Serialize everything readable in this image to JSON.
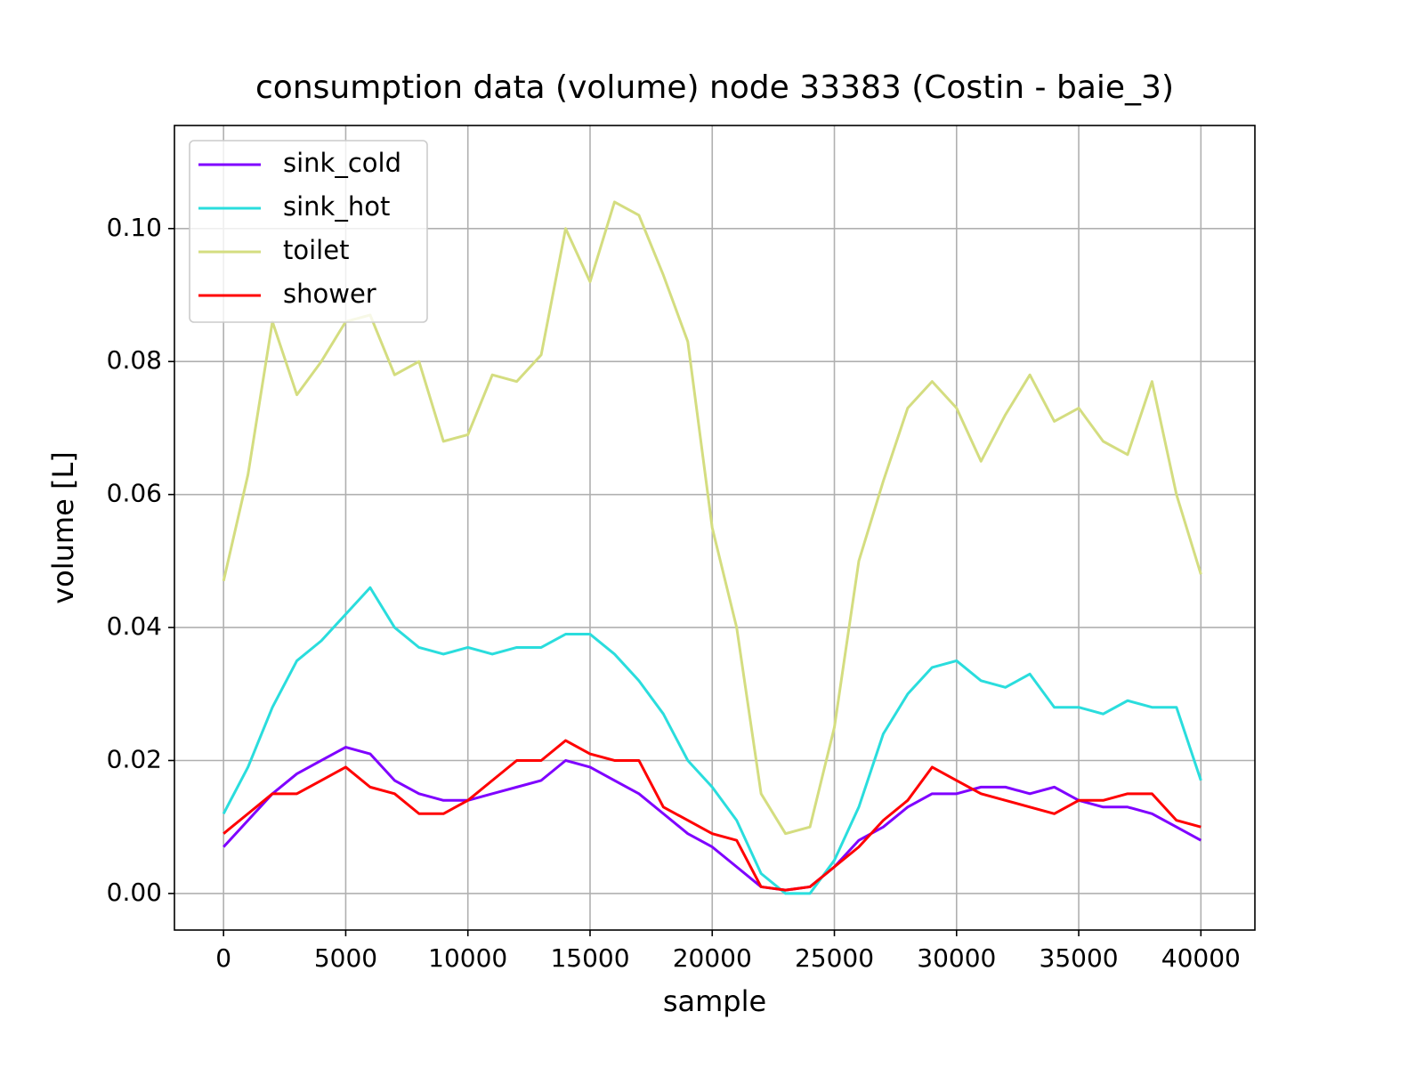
{
  "chart_data": {
    "type": "line",
    "title": "consumption data (volume) node 33383 (Costin - baie_3)",
    "xlabel": "sample",
    "ylabel": "volume [L]",
    "x": [
      0,
      1000,
      2000,
      3000,
      4000,
      5000,
      6000,
      7000,
      8000,
      9000,
      10000,
      11000,
      12000,
      13000,
      14000,
      15000,
      16000,
      17000,
      18000,
      19000,
      20000,
      21000,
      22000,
      23000,
      24000,
      25000,
      26000,
      27000,
      28000,
      29000,
      30000,
      31000,
      32000,
      33000,
      34000,
      35000,
      36000,
      37000,
      38000,
      39000,
      40000
    ],
    "series": [
      {
        "name": "sink_cold",
        "color": "#7f00ff",
        "values": [
          0.007,
          0.011,
          0.015,
          0.018,
          0.02,
          0.022,
          0.021,
          0.017,
          0.015,
          0.014,
          0.014,
          0.015,
          0.016,
          0.017,
          0.02,
          0.019,
          0.017,
          0.015,
          0.012,
          0.009,
          0.007,
          0.004,
          0.001,
          0.0005,
          0.001,
          0.004,
          0.008,
          0.01,
          0.013,
          0.015,
          0.015,
          0.016,
          0.016,
          0.015,
          0.016,
          0.014,
          0.013,
          0.013,
          0.012,
          0.01,
          0.008
        ]
      },
      {
        "name": "sink_hot",
        "color": "#2adddd",
        "values": [
          0.012,
          0.019,
          0.028,
          0.035,
          0.038,
          0.042,
          0.046,
          0.04,
          0.037,
          0.036,
          0.037,
          0.036,
          0.037,
          0.037,
          0.039,
          0.039,
          0.036,
          0.032,
          0.027,
          0.02,
          0.016,
          0.011,
          0.003,
          0.0,
          0.0,
          0.005,
          0.013,
          0.024,
          0.03,
          0.034,
          0.035,
          0.032,
          0.031,
          0.033,
          0.028,
          0.028,
          0.027,
          0.029,
          0.028,
          0.028,
          0.017
        ]
      },
      {
        "name": "toilet",
        "color": "#d4dd80",
        "values": [
          0.047,
          0.063,
          0.086,
          0.075,
          0.08,
          0.086,
          0.087,
          0.078,
          0.08,
          0.068,
          0.069,
          0.078,
          0.077,
          0.081,
          0.1,
          0.092,
          0.104,
          0.102,
          0.093,
          0.083,
          0.055,
          0.04,
          0.015,
          0.009,
          0.01,
          0.025,
          0.05,
          0.062,
          0.073,
          0.077,
          0.073,
          0.065,
          0.072,
          0.078,
          0.071,
          0.073,
          0.068,
          0.066,
          0.077,
          0.06,
          0.048
        ]
      },
      {
        "name": "shower",
        "color": "#ff0000",
        "values": [
          0.009,
          0.012,
          0.015,
          0.015,
          0.017,
          0.019,
          0.016,
          0.015,
          0.012,
          0.012,
          0.014,
          0.017,
          0.02,
          0.02,
          0.023,
          0.021,
          0.02,
          0.02,
          0.013,
          0.011,
          0.009,
          0.008,
          0.001,
          0.0005,
          0.001,
          0.004,
          0.007,
          0.011,
          0.014,
          0.019,
          0.017,
          0.015,
          0.014,
          0.013,
          0.012,
          0.014,
          0.014,
          0.015,
          0.015,
          0.011,
          0.01
        ]
      }
    ],
    "xlim": [
      -2010,
      42210
    ],
    "ylim": [
      -0.0055,
      0.1155
    ],
    "xticks": [
      0,
      5000,
      10000,
      15000,
      20000,
      25000,
      30000,
      35000,
      40000
    ],
    "yticks": [
      {
        "value": 0,
        "label": "0.00"
      },
      0.02,
      0.04,
      0.06,
      0.08,
      {
        "value": 0.1,
        "label": "0.10"
      }
    ],
    "grid": true,
    "legend": "upper left"
  }
}
